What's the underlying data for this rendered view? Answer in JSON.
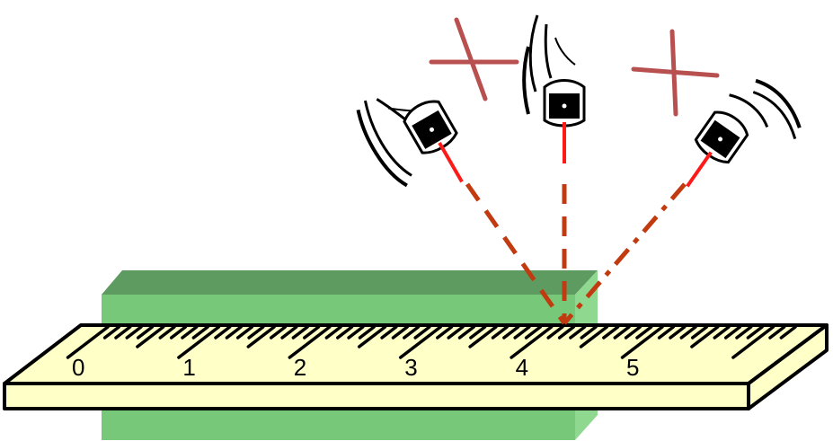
{
  "ruler": {
    "labels": [
      "0",
      "1",
      "2",
      "3",
      "4",
      "5"
    ],
    "minor_per_unit": 10,
    "units_shown": 6.2
  },
  "colors": {
    "block_front": "#78c87a",
    "block_top": "#5e9b60",
    "block_side": "#8fd88f",
    "ruler_fill": "#ffffc8",
    "sight_line": "#c23a10",
    "cross_mark": "#b85050",
    "eye_laser": "#ff1a1a"
  },
  "icons": {
    "left_eye": "eye-icon",
    "center_eye": "eye-icon",
    "right_eye": "eye-icon",
    "wrong_mark": "cross-icon"
  }
}
